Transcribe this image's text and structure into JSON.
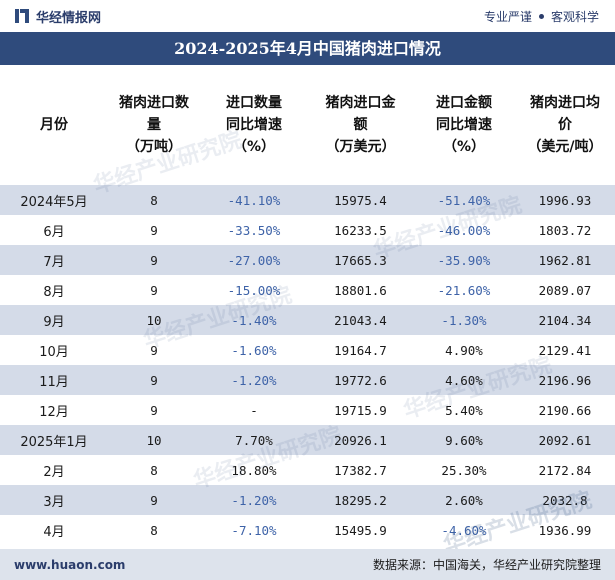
{
  "header": {
    "brand": "华经情报网",
    "slogan_left": "专业严谨",
    "slogan_right": "客观科学"
  },
  "title": "2024-2025年4月中国猪肉进口情况",
  "table": {
    "columns": [
      [
        "月份"
      ],
      [
        "猪肉进口数",
        "量",
        "（万吨）"
      ],
      [
        "进口数量",
        "同比增速",
        "（%）"
      ],
      [
        "猪肉进口金",
        "额",
        "（万美元）"
      ],
      [
        "进口金额",
        "同比增速",
        "（%）"
      ],
      [
        "猪肉进口均",
        "价",
        "（美元/吨）"
      ]
    ],
    "rows": [
      [
        "2024年5月",
        "8",
        "-41.10%",
        "15975.4",
        "-51.40%",
        "1996.93"
      ],
      [
        "6月",
        "9",
        "-33.50%",
        "16233.5",
        "-46.00%",
        "1803.72"
      ],
      [
        "7月",
        "9",
        "-27.00%",
        "17665.3",
        "-35.90%",
        "1962.81"
      ],
      [
        "8月",
        "9",
        "-15.00%",
        "18801.6",
        "-21.60%",
        "2089.07"
      ],
      [
        "9月",
        "10",
        "-1.40%",
        "21043.4",
        "-1.30%",
        "2104.34"
      ],
      [
        "10月",
        "9",
        "-1.60%",
        "19164.7",
        "4.90%",
        "2129.41"
      ],
      [
        "11月",
        "9",
        "-1.20%",
        "19772.6",
        "4.60%",
        "2196.96"
      ],
      [
        "12月",
        "9",
        "-",
        "19715.9",
        "5.40%",
        "2190.66"
      ],
      [
        "2025年1月",
        "10",
        "7.70%",
        "20926.1",
        "9.60%",
        "2092.61"
      ],
      [
        "2月",
        "8",
        "18.80%",
        "17382.7",
        "25.30%",
        "2172.84"
      ],
      [
        "3月",
        "9",
        "-1.20%",
        "18295.2",
        "2.60%",
        "2032.8"
      ],
      [
        "4月",
        "8",
        "-7.10%",
        "15495.9",
        "-4.60%",
        "1936.99"
      ]
    ]
  },
  "watermark": "华经产业研究院",
  "footer": {
    "site": "www.huaon.com",
    "source": "数据来源：中国海关，华经产业研究院整理"
  },
  "colors": {
    "brand": "#2f4b7c",
    "row_band": "#d4dbe8",
    "negative_text": "#3e63a8"
  }
}
